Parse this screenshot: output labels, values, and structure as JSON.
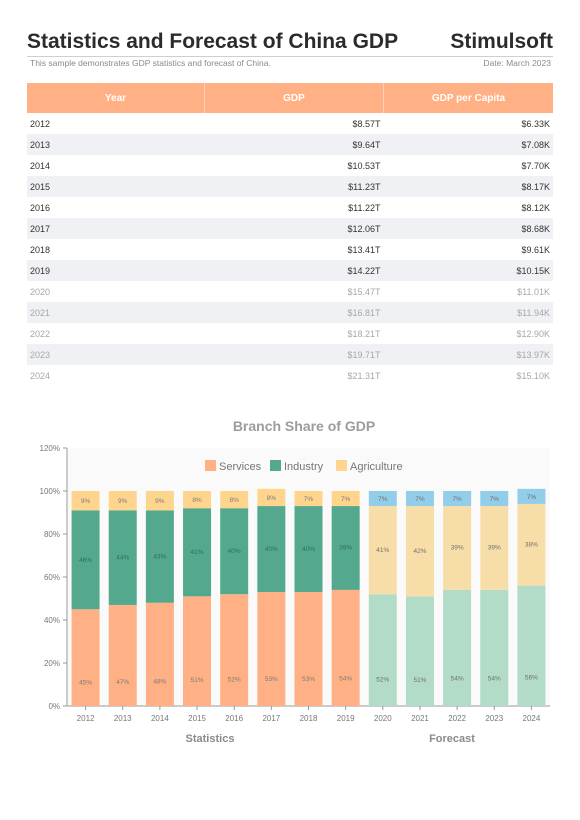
{
  "header": {
    "title": "Statistics and Forecast of China GDP",
    "brand": "Stimulsoft",
    "subtitle": "This sample demonstrates GDP statistics and forecast of China.",
    "date": "Date: March 2023"
  },
  "table": {
    "columns": [
      "Year",
      "GDP",
      "GDP per Capita"
    ],
    "rows": [
      {
        "year": "2012",
        "gdp": "$8.57T",
        "per_capita": "$6.33K",
        "forecast": false
      },
      {
        "year": "2013",
        "gdp": "$9.64T",
        "per_capita": "$7.08K",
        "forecast": false
      },
      {
        "year": "2014",
        "gdp": "$10.53T",
        "per_capita": "$7.70K",
        "forecast": false
      },
      {
        "year": "2015",
        "gdp": "$11.23T",
        "per_capita": "$8.17K",
        "forecast": false
      },
      {
        "year": "2016",
        "gdp": "$11.22T",
        "per_capita": "$8.12K",
        "forecast": false
      },
      {
        "year": "2017",
        "gdp": "$12.06T",
        "per_capita": "$8.68K",
        "forecast": false
      },
      {
        "year": "2018",
        "gdp": "$13.41T",
        "per_capita": "$9.61K",
        "forecast": false
      },
      {
        "year": "2019",
        "gdp": "$14.22T",
        "per_capita": "$10.15K",
        "forecast": false
      },
      {
        "year": "2020",
        "gdp": "$15.47T",
        "per_capita": "$11.01K",
        "forecast": true
      },
      {
        "year": "2021",
        "gdp": "$16.81T",
        "per_capita": "$11.94K",
        "forecast": true
      },
      {
        "year": "2022",
        "gdp": "$18.21T",
        "per_capita": "$12.90K",
        "forecast": true
      },
      {
        "year": "2023",
        "gdp": "$19.71T",
        "per_capita": "$13.97K",
        "forecast": true
      },
      {
        "year": "2024",
        "gdp": "$21.31T",
        "per_capita": "$15.10K",
        "forecast": true
      }
    ]
  },
  "chart_data": {
    "type": "bar",
    "stacked": true,
    "title": "Branch Share of GDP",
    "categories": [
      "2012",
      "2013",
      "2014",
      "2015",
      "2016",
      "2017",
      "2018",
      "2019",
      "2020",
      "2021",
      "2022",
      "2023",
      "2024"
    ],
    "series": [
      {
        "name": "Services",
        "values": [
          45,
          47,
          48,
          51,
          52,
          53,
          53,
          54,
          52,
          51,
          54,
          54,
          56
        ],
        "color": "#ffb085",
        "forecast_color": "#b2dcc7"
      },
      {
        "name": "Industry",
        "values": [
          46,
          44,
          43,
          41,
          40,
          40,
          40,
          39,
          41,
          42,
          39,
          39,
          38
        ],
        "color": "#53a88d",
        "forecast_color": "#f7dea8"
      },
      {
        "name": "Agriculture",
        "values": [
          9,
          9,
          9,
          8,
          8,
          8,
          7,
          7,
          7,
          7,
          7,
          7,
          7
        ],
        "color": "#ffd58d",
        "forecast_color": "#92cdea"
      }
    ],
    "label_texts": [
      [
        "45%",
        "47%",
        "48%",
        "51%",
        "52%",
        "53%",
        "53%",
        "54%",
        "52%",
        "51%",
        "54%",
        "54%",
        "56%"
      ],
      [
        "46%",
        "44%",
        "43%",
        "41%",
        "40%",
        "40%",
        "40%",
        "39%",
        "41%",
        "42%",
        "39%",
        "39%",
        "38%"
      ],
      [
        "9%",
        "9%",
        "9%",
        "8%",
        "8%",
        "8%",
        "7%",
        "7%",
        "7%",
        "7%",
        "7%",
        "7%",
        "7%"
      ]
    ],
    "forecast_start_index": 8,
    "group_labels": [
      "Statistics",
      "Forecast"
    ],
    "ylim": [
      0,
      120
    ],
    "yticks": [
      0,
      20,
      40,
      60,
      80,
      100,
      120
    ],
    "ytick_labels": [
      "0%",
      "20%",
      "40%",
      "60%",
      "80%",
      "100%",
      "120%"
    ],
    "legend_position": "top-center",
    "grid": false
  }
}
